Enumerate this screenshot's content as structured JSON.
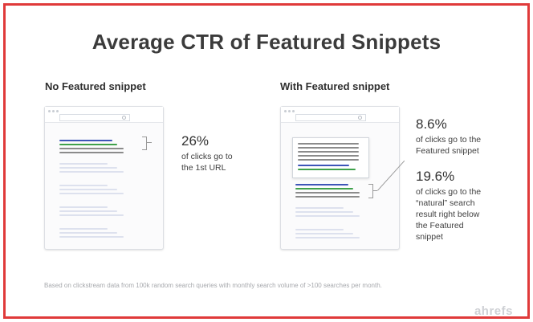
{
  "title": "Average CTR of Featured Snippets",
  "left": {
    "heading": "No Featured snippet",
    "stat": "26%",
    "description": [
      "of clicks go to",
      "the 1st URL"
    ]
  },
  "right": {
    "heading": "With Featured snippet",
    "stat1": "8.6%",
    "description1": [
      "of clicks go to the",
      "Featured snippet"
    ],
    "stat2": "19.6%",
    "description2": [
      "of clicks go to the",
      "“natural” search",
      "result right below",
      "the Featured",
      "snippet"
    ]
  },
  "footnote": "Based on clickstream data from 100k random search queries with monthly search volume of >100 searches per month.",
  "logo": "ahrefs",
  "colors": {
    "border": "#e03a3a",
    "blue": "#3d55b8",
    "green": "#3fa14b",
    "gray": "#8b8b8b"
  }
}
